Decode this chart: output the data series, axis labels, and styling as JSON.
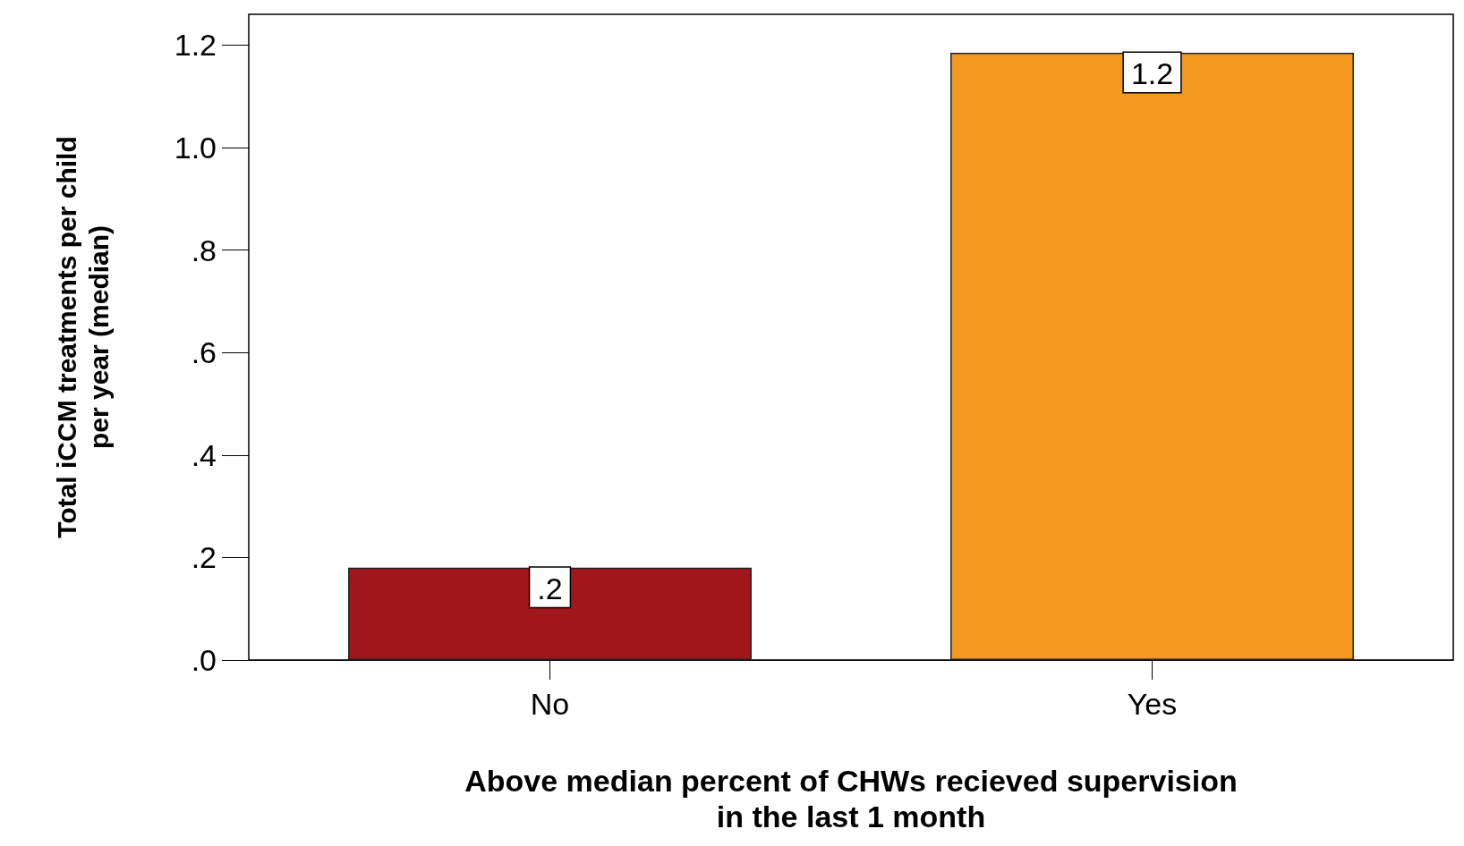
{
  "chart_data": {
    "type": "bar",
    "xlabel": "Above median percent of CHWs recieved supervision in the last 1 month",
    "ylabel": "Total iCCM treatments per child per year (median)",
    "categories": [
      "No",
      "Yes"
    ],
    "values": [
      0.18,
      1.185
    ],
    "colors": [
      "#a0161a",
      "#f5981f"
    ],
    "value_labels": [
      ".2",
      "1.2"
    ],
    "ylim": [
      0,
      1.26
    ],
    "yticks": [
      {
        "value": 0,
        "label": ".0"
      },
      {
        "value": 0.2,
        "label": ".2"
      },
      {
        "value": 0.4,
        "label": ".4"
      },
      {
        "value": 0.6,
        "label": ".6"
      },
      {
        "value": 0.8,
        "label": ".8"
      },
      {
        "value": 1,
        "label": "1.0"
      },
      1.2
    ],
    "grid": false
  }
}
